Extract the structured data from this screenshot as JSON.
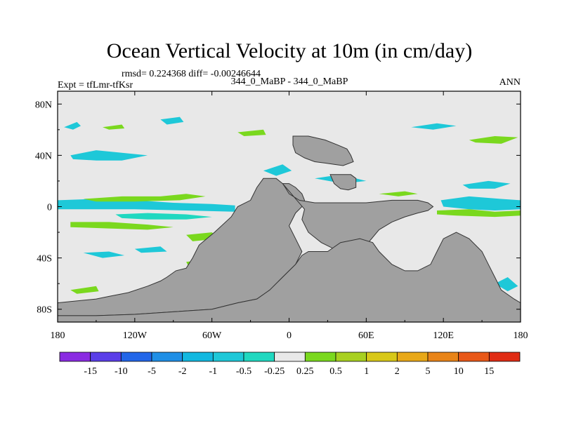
{
  "chart_data": {
    "type": "heatmap",
    "title": "Ocean Vertical Velocity at 10m (in cm/day)",
    "stats": "rmsd= 0.224368 diff= -0.00246644",
    "left_label": "Expt = tfLmr-tfKsr",
    "center_label": "344_0_MaBP - 344_0_MaBP",
    "right_label": "ANN",
    "xlim": [
      -180,
      180
    ],
    "ylim": [
      -90,
      90
    ],
    "x_ticks": [
      {
        "value": -180,
        "label": "180"
      },
      {
        "value": -120,
        "label": "120W"
      },
      {
        "value": -60,
        "label": "60W"
      },
      {
        "value": 0,
        "label": "0"
      },
      {
        "value": 60,
        "label": "60E"
      },
      {
        "value": 120,
        "label": "120E"
      },
      {
        "value": 180,
        "label": "180"
      }
    ],
    "y_ticks": [
      {
        "value": 80,
        "label": "80N"
      },
      {
        "value": 40,
        "label": "40N"
      },
      {
        "value": 0,
        "label": "0"
      },
      {
        "value": -40,
        "label": "40S"
      },
      {
        "value": -80,
        "label": "80S"
      }
    ],
    "colorbar": {
      "levels": [
        "-15",
        "-10",
        "-5",
        "-2",
        "-1",
        "-0.5",
        "-0.25",
        "0.25",
        "0.5",
        "1",
        "2",
        "5",
        "10",
        "15"
      ],
      "colors": [
        "#8a2be2",
        "#5a3ee8",
        "#2266e8",
        "#1f8fe6",
        "#12b8e0",
        "#1ec8d8",
        "#20d8c0",
        "#e8e8e8",
        "#7ad81e",
        "#a8d020",
        "#d8c818",
        "#e8a818",
        "#e88418",
        "#e85818",
        "#e02c14"
      ]
    },
    "background_value_color": "#e8e8e8",
    "land_color": "#a0a0a0",
    "land_polygons": [
      {
        "name": "americas",
        "points": [
          [
            -180,
            -75
          ],
          [
            -170,
            -74
          ],
          [
            -150,
            -72
          ],
          [
            -140,
            -70
          ],
          [
            -125,
            -67
          ],
          [
            -110,
            -62
          ],
          [
            -100,
            -58
          ],
          [
            -95,
            -55
          ],
          [
            -88,
            -50
          ],
          [
            -80,
            -48
          ],
          [
            -75,
            -40
          ],
          [
            -70,
            -30
          ],
          [
            -58,
            -20
          ],
          [
            -45,
            -8
          ],
          [
            -40,
            0
          ],
          [
            -30,
            5
          ],
          [
            -25,
            15
          ],
          [
            -20,
            22
          ],
          [
            -10,
            22
          ],
          [
            -5,
            18
          ],
          [
            0,
            18
          ],
          [
            5,
            15
          ],
          [
            10,
            10
          ],
          [
            12,
            5
          ],
          [
            10,
            0
          ],
          [
            5,
            -5
          ],
          [
            0,
            -15
          ],
          [
            5,
            -25
          ],
          [
            10,
            -35
          ],
          [
            5,
            -45
          ],
          [
            -5,
            -55
          ],
          [
            -15,
            -65
          ],
          [
            -25,
            -72
          ],
          [
            -40,
            -75
          ],
          [
            -60,
            -80
          ],
          [
            -90,
            -82
          ],
          [
            -120,
            -84
          ],
          [
            -150,
            -85
          ],
          [
            -180,
            -85
          ]
        ]
      },
      {
        "name": "africa-asia",
        "points": [
          [
            -5,
            18
          ],
          [
            -3,
            15
          ],
          [
            0,
            10
          ],
          [
            8,
            5
          ],
          [
            20,
            3
          ],
          [
            40,
            3
          ],
          [
            60,
            3
          ],
          [
            80,
            5
          ],
          [
            100,
            5
          ],
          [
            108,
            3
          ],
          [
            112,
            0
          ],
          [
            108,
            -3
          ],
          [
            100,
            -5
          ],
          [
            90,
            -8
          ],
          [
            80,
            -12
          ],
          [
            70,
            -18
          ],
          [
            60,
            -30
          ],
          [
            50,
            -35
          ],
          [
            35,
            -33
          ],
          [
            25,
            -28
          ],
          [
            15,
            -20
          ],
          [
            10,
            -10
          ],
          [
            12,
            -2
          ]
        ]
      },
      {
        "name": "east-continent",
        "points": [
          [
            30,
            -35
          ],
          [
            40,
            -28
          ],
          [
            55,
            -25
          ],
          [
            65,
            -28
          ],
          [
            70,
            -35
          ],
          [
            80,
            -45
          ],
          [
            90,
            -50
          ],
          [
            100,
            -50
          ],
          [
            110,
            -45
          ],
          [
            115,
            -35
          ],
          [
            120,
            -25
          ],
          [
            130,
            -20
          ],
          [
            140,
            -25
          ],
          [
            150,
            -35
          ],
          [
            155,
            -45
          ],
          [
            160,
            -55
          ],
          [
            165,
            -65
          ],
          [
            175,
            -72
          ],
          [
            180,
            -75
          ],
          [
            180,
            -90
          ],
          [
            -180,
            -90
          ],
          [
            -180,
            -85
          ],
          [
            -150,
            -85
          ],
          [
            -120,
            -84
          ],
          [
            -90,
            -82
          ],
          [
            -60,
            -80
          ],
          [
            -40,
            -75
          ],
          [
            -25,
            -72
          ],
          [
            -15,
            -65
          ],
          [
            -5,
            -55
          ],
          [
            5,
            -45
          ],
          [
            10,
            -38
          ],
          [
            15,
            -35
          ],
          [
            25,
            -35
          ]
        ]
      },
      {
        "name": "north-island",
        "points": [
          [
            3,
            55
          ],
          [
            15,
            55
          ],
          [
            28,
            52
          ],
          [
            38,
            48
          ],
          [
            45,
            45
          ],
          [
            48,
            40
          ],
          [
            50,
            35
          ],
          [
            42,
            32
          ],
          [
            35,
            33
          ],
          [
            28,
            34
          ],
          [
            20,
            35
          ],
          [
            12,
            38
          ],
          [
            5,
            42
          ],
          [
            3,
            48
          ]
        ]
      },
      {
        "name": "small-island",
        "points": [
          [
            32,
            25
          ],
          [
            48,
            25
          ],
          [
            52,
            22
          ],
          [
            52,
            15
          ],
          [
            46,
            13
          ],
          [
            40,
            14
          ],
          [
            35,
            18
          ]
        ]
      }
    ],
    "contour_patches": [
      {
        "color": "#1ec8d8",
        "points": [
          [
            -180,
            5
          ],
          [
            -150,
            6
          ],
          [
            -120,
            5
          ],
          [
            -90,
            3
          ],
          [
            -60,
            2
          ],
          [
            -42,
            1
          ],
          [
            -42,
            -4
          ],
          [
            -80,
            -3
          ],
          [
            -120,
            -2
          ],
          [
            -160,
            -2
          ],
          [
            -180,
            -2
          ]
        ]
      },
      {
        "color": "#7ad81e",
        "points": [
          [
            -160,
            6
          ],
          [
            -130,
            8
          ],
          [
            -100,
            8
          ],
          [
            -80,
            10
          ],
          [
            -65,
            8
          ],
          [
            -85,
            5
          ],
          [
            -120,
            4
          ],
          [
            -150,
            4
          ]
        ]
      },
      {
        "color": "#20d8c0",
        "points": [
          [
            -135,
            -6
          ],
          [
            -110,
            -5
          ],
          [
            -80,
            -6
          ],
          [
            -60,
            -8
          ],
          [
            -80,
            -10
          ],
          [
            -110,
            -10
          ],
          [
            -130,
            -9
          ]
        ]
      },
      {
        "color": "#7ad81e",
        "points": [
          [
            -170,
            -12
          ],
          [
            -140,
            -12
          ],
          [
            -110,
            -14
          ],
          [
            -90,
            -16
          ],
          [
            -110,
            -18
          ],
          [
            -140,
            -17
          ],
          [
            -170,
            -16
          ]
        ]
      },
      {
        "color": "#1ec8d8",
        "points": [
          [
            -170,
            40
          ],
          [
            -150,
            44
          ],
          [
            -130,
            42
          ],
          [
            -110,
            40
          ],
          [
            -130,
            36
          ],
          [
            -150,
            36
          ],
          [
            -168,
            37
          ]
        ]
      },
      {
        "color": "#1ec8d8",
        "points": [
          [
            -175,
            62
          ],
          [
            -165,
            66
          ],
          [
            -162,
            63
          ],
          [
            -168,
            60
          ]
        ]
      },
      {
        "color": "#7ad81e",
        "points": [
          [
            -145,
            62
          ],
          [
            -130,
            64
          ],
          [
            -128,
            61
          ],
          [
            -140,
            60
          ]
        ]
      },
      {
        "color": "#1ec8d8",
        "points": [
          [
            -100,
            68
          ],
          [
            -85,
            70
          ],
          [
            -82,
            66
          ],
          [
            -95,
            64
          ]
        ]
      },
      {
        "color": "#7ad81e",
        "points": [
          [
            -40,
            58
          ],
          [
            -20,
            60
          ],
          [
            -18,
            56
          ],
          [
            -35,
            55
          ]
        ]
      },
      {
        "color": "#1ec8d8",
        "points": [
          [
            -20,
            28
          ],
          [
            -5,
            33
          ],
          [
            2,
            28
          ],
          [
            -10,
            24
          ]
        ]
      },
      {
        "color": "#1ec8d8",
        "points": [
          [
            118,
            5
          ],
          [
            140,
            8
          ],
          [
            165,
            6
          ],
          [
            180,
            5
          ],
          [
            180,
            -2
          ],
          [
            160,
            -3
          ],
          [
            140,
            -2
          ],
          [
            120,
            0
          ]
        ]
      },
      {
        "color": "#7ad81e",
        "points": [
          [
            115,
            -3
          ],
          [
            140,
            -2
          ],
          [
            160,
            -4
          ],
          [
            180,
            -3
          ],
          [
            180,
            -7
          ],
          [
            160,
            -8
          ],
          [
            130,
            -7
          ],
          [
            115,
            -6
          ]
        ]
      },
      {
        "color": "#1ec8d8",
        "points": [
          [
            135,
            17
          ],
          [
            155,
            20
          ],
          [
            172,
            18
          ],
          [
            160,
            14
          ],
          [
            140,
            14
          ]
        ]
      },
      {
        "color": "#7ad81e",
        "points": [
          [
            140,
            52
          ],
          [
            160,
            55
          ],
          [
            178,
            54
          ],
          [
            165,
            49
          ],
          [
            145,
            50
          ]
        ]
      },
      {
        "color": "#1ec8d8",
        "points": [
          [
            95,
            62
          ],
          [
            115,
            65
          ],
          [
            130,
            63
          ],
          [
            112,
            60
          ]
        ]
      },
      {
        "color": "#1ec8d8",
        "points": [
          [
            20,
            22
          ],
          [
            40,
            25
          ],
          [
            60,
            20
          ],
          [
            42,
            18
          ]
        ]
      },
      {
        "color": "#7ad81e",
        "points": [
          [
            70,
            10
          ],
          [
            90,
            12
          ],
          [
            100,
            10
          ],
          [
            85,
            8
          ]
        ]
      },
      {
        "color": "#7ad81e",
        "points": [
          [
            -80,
            -43
          ],
          [
            -55,
            -41
          ],
          [
            -35,
            -45
          ],
          [
            -55,
            -48
          ],
          [
            -78,
            -47
          ]
        ]
      },
      {
        "color": "#1ec8d8",
        "points": [
          [
            -160,
            -36
          ],
          [
            -140,
            -35
          ],
          [
            -128,
            -38
          ],
          [
            -145,
            -40
          ]
        ]
      },
      {
        "color": "#7ad81e",
        "points": [
          [
            -170,
            -65
          ],
          [
            -150,
            -62
          ],
          [
            -148,
            -66
          ],
          [
            -165,
            -68
          ]
        ]
      },
      {
        "color": "#1ec8d8",
        "points": [
          [
            -90,
            -70
          ],
          [
            -65,
            -68
          ],
          [
            -50,
            -70
          ],
          [
            -70,
            -73
          ]
        ]
      },
      {
        "color": "#1ec8d8",
        "points": [
          [
            160,
            -60
          ],
          [
            170,
            -55
          ],
          [
            178,
            -62
          ],
          [
            170,
            -66
          ]
        ]
      },
      {
        "color": "#7ad81e",
        "points": [
          [
            -80,
            -22
          ],
          [
            -60,
            -20
          ],
          [
            -55,
            -25
          ],
          [
            -75,
            -27
          ]
        ]
      },
      {
        "color": "#1ec8d8",
        "points": [
          [
            -120,
            -33
          ],
          [
            -100,
            -31
          ],
          [
            -95,
            -35
          ],
          [
            -115,
            -36
          ]
        ]
      },
      {
        "color": "#7ad81e",
        "points": [
          [
            20,
            -20
          ],
          [
            45,
            -18
          ],
          [
            55,
            -22
          ],
          [
            35,
            -24
          ]
        ]
      }
    ]
  }
}
